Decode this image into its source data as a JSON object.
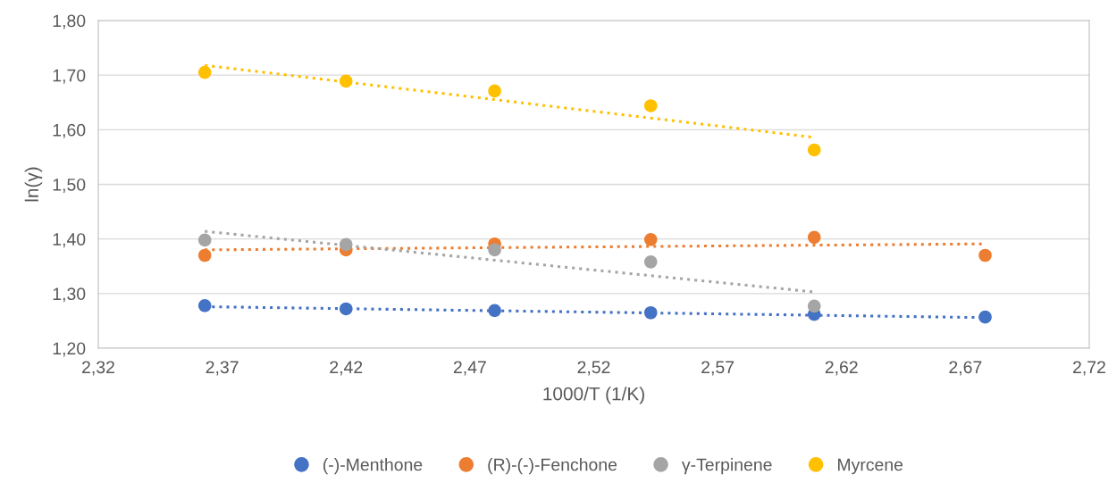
{
  "chart_data": {
    "type": "scatter",
    "xlabel": "1000/T (1/K)",
    "ylabel": "ln(γ)",
    "xlim": [
      2.32,
      2.72
    ],
    "ylim": [
      1.2,
      1.8
    ],
    "xticks": [
      {
        "value": 2.32,
        "label": "2,32"
      },
      {
        "value": 2.37,
        "label": "2,37"
      },
      {
        "value": 2.42,
        "label": "2,42"
      },
      {
        "value": 2.47,
        "label": "2,47"
      },
      {
        "value": 2.52,
        "label": "2,52"
      },
      {
        "value": 2.57,
        "label": "2,57"
      },
      {
        "value": 2.62,
        "label": "2,62"
      },
      {
        "value": 2.67,
        "label": "2,67"
      },
      {
        "value": 2.72,
        "label": "2,72"
      }
    ],
    "yticks": [
      {
        "value": 1.2,
        "label": "1,20"
      },
      {
        "value": 1.3,
        "label": "1,30"
      },
      {
        "value": 1.4,
        "label": "1,40"
      },
      {
        "value": 1.5,
        "label": "1,50"
      },
      {
        "value": 1.6,
        "label": "1,60"
      },
      {
        "value": 1.7,
        "label": "1,70"
      },
      {
        "value": 1.8,
        "label": "1,80"
      }
    ],
    "grid": "y",
    "legend": "bottom",
    "series": [
      {
        "name": "(-)-Menthone",
        "marker": "circle",
        "color": "#4472c4",
        "x": [
          2.363,
          2.42,
          2.48,
          2.543,
          2.609,
          2.678
        ],
        "values": [
          1.278,
          1.272,
          1.269,
          1.265,
          1.262,
          1.257
        ]
      },
      {
        "name": "(R)-(-)-Fenchone",
        "marker": "circle",
        "color": "#ed7d31",
        "x": [
          2.363,
          2.42,
          2.48,
          2.543,
          2.609,
          2.678
        ],
        "values": [
          1.37,
          1.38,
          1.391,
          1.399,
          1.403,
          1.37
        ]
      },
      {
        "name": "γ-Terpinene",
        "marker": "circle",
        "color": "#a5a5a5",
        "x": [
          2.363,
          2.42,
          2.48,
          2.543,
          2.609
        ],
        "values": [
          1.398,
          1.39,
          1.38,
          1.358,
          1.277
        ]
      },
      {
        "name": "Myrcene",
        "marker": "circle",
        "color": "#ffc000",
        "x": [
          2.363,
          2.42,
          2.48,
          2.543,
          2.609
        ],
        "values": [
          1.705,
          1.689,
          1.671,
          1.644,
          1.563
        ]
      },
      {
        "type": "line",
        "line_style": "dotted",
        "color": "#4472c4",
        "x": [
          2.363,
          2.678
        ],
        "values": [
          1.276,
          1.256
        ]
      },
      {
        "type": "line",
        "line_style": "dotted",
        "color": "#ed7d31",
        "x": [
          2.363,
          2.678
        ],
        "values": [
          1.38,
          1.391
        ]
      },
      {
        "type": "line",
        "line_style": "dotted",
        "color": "#a5a5a5",
        "x": [
          2.363,
          2.609
        ],
        "values": [
          1.414,
          1.303
        ]
      },
      {
        "type": "line",
        "line_style": "dotted",
        "color": "#ffc000",
        "x": [
          2.363,
          2.609
        ],
        "values": [
          1.718,
          1.586
        ]
      }
    ]
  }
}
